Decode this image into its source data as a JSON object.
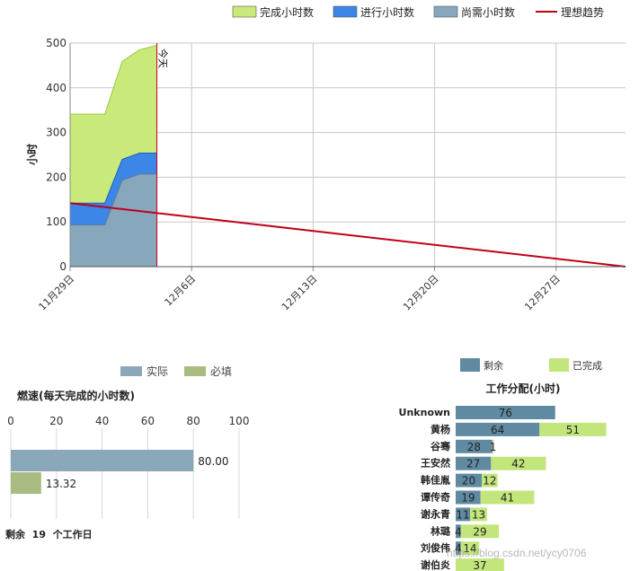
{
  "colors": {
    "completed": "#c9e97a",
    "in_progress": "#3b86e6",
    "remaining": "#87a8bc",
    "ideal": "#c00018",
    "actual": "#8aa8ba",
    "required": "#a9bb80",
    "assign_remaining": "#5f8aa2",
    "assign_done": "#c3e67c"
  },
  "chart_data": [
    {
      "id": "burndown",
      "type": "area",
      "title": "",
      "xlabel": "",
      "ylabel": "小时",
      "ylim": [
        0,
        500
      ],
      "yticks": [
        0,
        100,
        200,
        300,
        400,
        500
      ],
      "x_range": [
        "2015-11-29",
        "2015-12-31"
      ],
      "xtick_labels": [
        {
          "date": "2015-11-29",
          "label": "11月29日"
        },
        {
          "date": "2015-12-06",
          "label": "12月6日"
        },
        {
          "date": "2015-12-13",
          "label": "12月13日"
        },
        {
          "date": "2015-12-20",
          "label": "12月20日"
        },
        {
          "date": "2015-12-27",
          "label": "12月27日"
        }
      ],
      "legend_position": "top-right",
      "x": [
        "2015-11-29",
        "2015-11-30",
        "2015-12-01",
        "2015-12-02",
        "2015-12-03",
        "2015-12-04"
      ],
      "series": [
        {
          "name": "尚需小时数",
          "values": [
            93,
            93,
            93,
            193,
            207,
            207
          ]
        },
        {
          "name": "进行小时数",
          "values": [
            49,
            49,
            49,
            47,
            47,
            47
          ]
        },
        {
          "name": "完成小时数",
          "values": [
            199,
            199,
            199,
            219,
            231,
            241
          ]
        }
      ],
      "ideal": {
        "name": "理想趋势",
        "points": [
          [
            "2015-11-29",
            142
          ],
          [
            "2015-12-31",
            0
          ]
        ]
      },
      "today": {
        "date": "2015-12-04",
        "label": "今天"
      }
    },
    {
      "id": "burnrate",
      "type": "bar",
      "orientation": "horizontal",
      "title": "燃速(每天完成的小时数)",
      "xlim": [
        0,
        100
      ],
      "xticks": [
        0,
        20,
        40,
        60,
        80,
        100
      ],
      "legend_position": "top",
      "series": [
        {
          "name": "实际",
          "value": 80.0,
          "label": "80.00"
        },
        {
          "name": "必填",
          "value": 13.32,
          "label": "13.32"
        }
      ]
    },
    {
      "id": "assignment",
      "type": "bar",
      "orientation": "horizontal",
      "stacked": true,
      "title": "工作分配(小时)",
      "legend_position": "top",
      "xlim": [
        0,
        140
      ],
      "categories": [
        "Unknown",
        "黄杨",
        "谷骞",
        "王安然",
        "韩佳胤",
        "谭传奇",
        "谢永青",
        "林璐",
        "刘俊伟",
        "谢伯炎"
      ],
      "series": [
        {
          "name": "剩余",
          "values": [
            76,
            64,
            28,
            27,
            20,
            19,
            11,
            4,
            4,
            0
          ]
        },
        {
          "name": "已完成",
          "values": [
            0,
            51,
            1,
            42,
            12,
            41,
            13,
            29,
            14,
            37
          ]
        }
      ]
    }
  ],
  "summary": {
    "text": "剩余  19  个工作日"
  },
  "watermark": "https://blog.csdn.net/ycy0706"
}
